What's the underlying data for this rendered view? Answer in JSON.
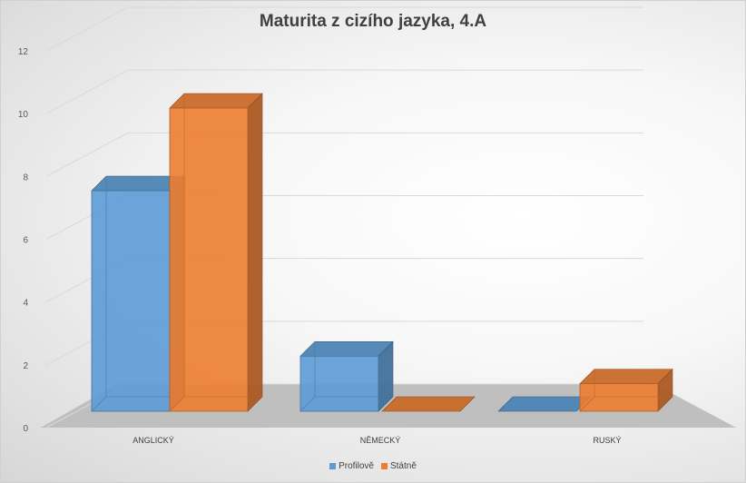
{
  "chart_data": {
    "type": "bar",
    "title": "Maturita z cizího jazyka, 4.A",
    "categories": [
      "ANGLICKÝ",
      "NĚMECKÝ",
      "RUSKÝ"
    ],
    "series": [
      {
        "name": "Profilově",
        "values": [
          8,
          2,
          0
        ],
        "color": "#5b9bd5"
      },
      {
        "name": "Státně",
        "values": [
          11,
          0,
          1
        ],
        "color": "#ed7d31"
      }
    ],
    "ylim": [
      0,
      12
    ],
    "yticks": [
      "0",
      "2",
      "4",
      "6",
      "8",
      "10",
      "12"
    ],
    "xlabel": "",
    "ylabel": "",
    "grid": true,
    "legend_position": "bottom",
    "style": "3d-column"
  }
}
